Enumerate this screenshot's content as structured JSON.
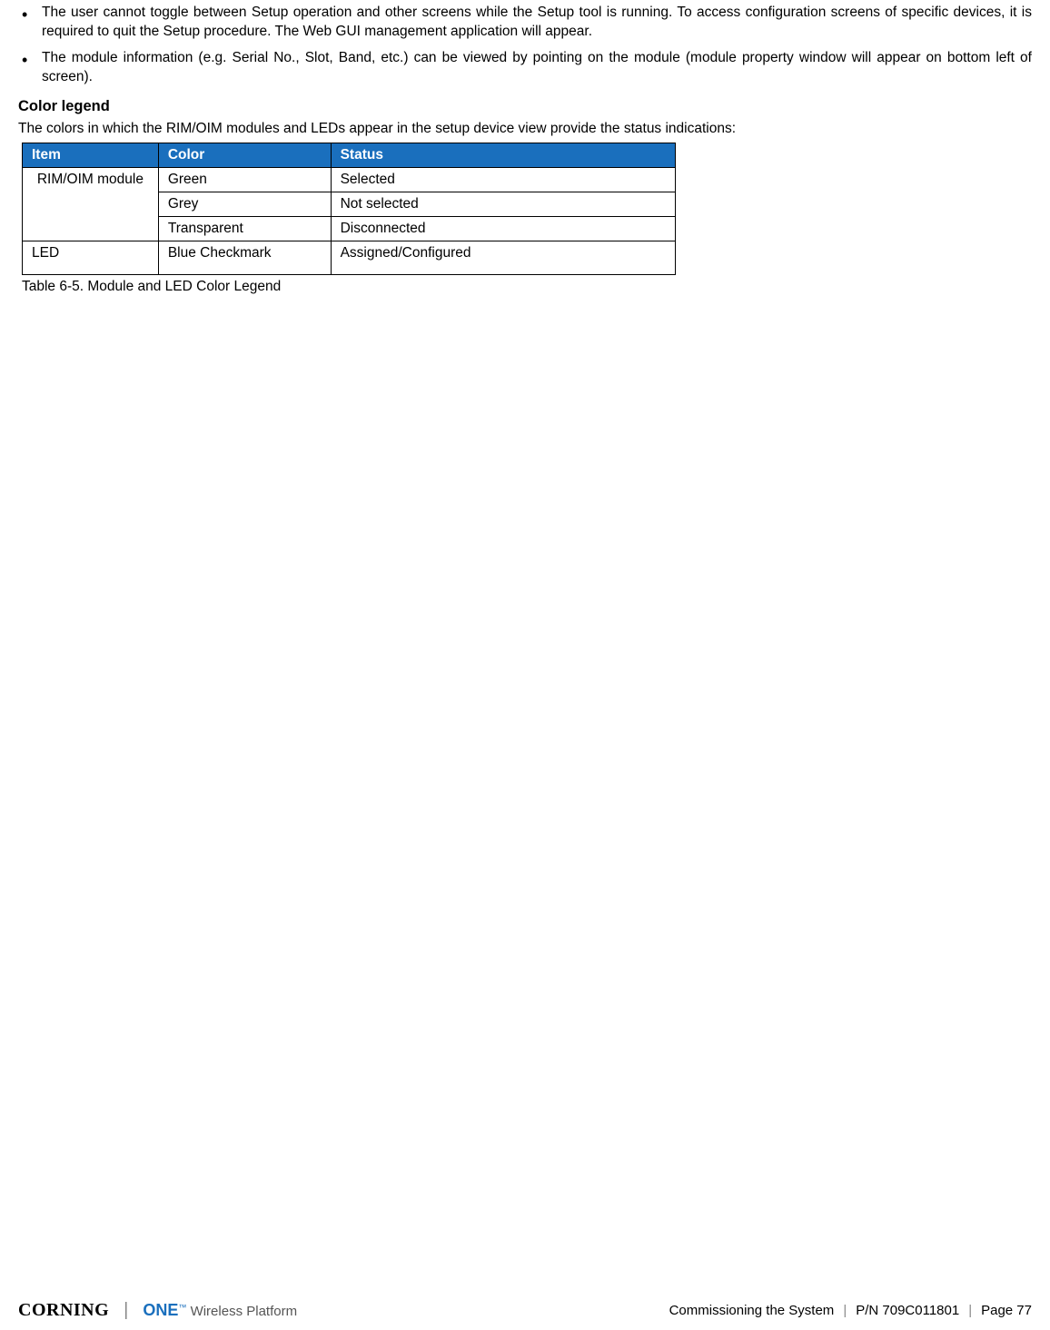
{
  "bullets": [
    "The user cannot toggle between Setup operation and other screens while the Setup tool is running. To access configuration screens of specific devices, it is required to quit the Setup procedure. The Web GUI management application will appear.",
    "The module information (e.g. Serial No., Slot, Band, etc.) can be viewed by pointing on the module (module property window will appear on bottom left of screen)."
  ],
  "section_title": "Color legend",
  "intro": "The colors in which the RIM/OIM modules and LEDs appear in the setup device view provide the status indications:",
  "table": {
    "header_bg": "#1a6fbd",
    "header_fg": "#ffffff",
    "border_color": "#000000",
    "columns": [
      "Item",
      "Color",
      "Status"
    ],
    "rows": [
      {
        "item": "RIM/OIM module",
        "color": "Green",
        "status": "Selected",
        "rowspan_item": 3
      },
      {
        "item": "",
        "color": "Grey",
        "status": "Not selected",
        "rowspan_item": 0
      },
      {
        "item": "",
        "color": "Transparent",
        "status": "Disconnected",
        "rowspan_item": 0
      },
      {
        "item": "LED",
        "color": "Blue Checkmark",
        "status": "Assigned/Configured",
        "rowspan_item": 1
      }
    ]
  },
  "caption": "Table 6-5. Module and LED Color Legend",
  "footer": {
    "brand_corning": "CORNING",
    "brand_one": "ONE",
    "brand_tm": "™",
    "brand_platform": "Wireless Platform",
    "section": "Commissioning the System",
    "pn": "P/N 709C011801",
    "page": "Page 77"
  }
}
